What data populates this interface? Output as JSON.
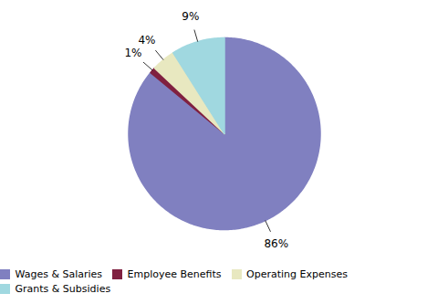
{
  "chart_data": {
    "type": "pie",
    "categories": [
      "Wages & Salaries",
      "Employee Benefits",
      "Operating Expenses",
      "Grants & Subsidies"
    ],
    "values": [
      86,
      1,
      4,
      9
    ],
    "value_labels": [
      "86%",
      "1%",
      "4%",
      "9%"
    ],
    "colors": [
      "#8080c0",
      "#802040",
      "#e8e8c0",
      "#a0d8e0"
    ],
    "data_labels": true,
    "legend": "bottom"
  }
}
